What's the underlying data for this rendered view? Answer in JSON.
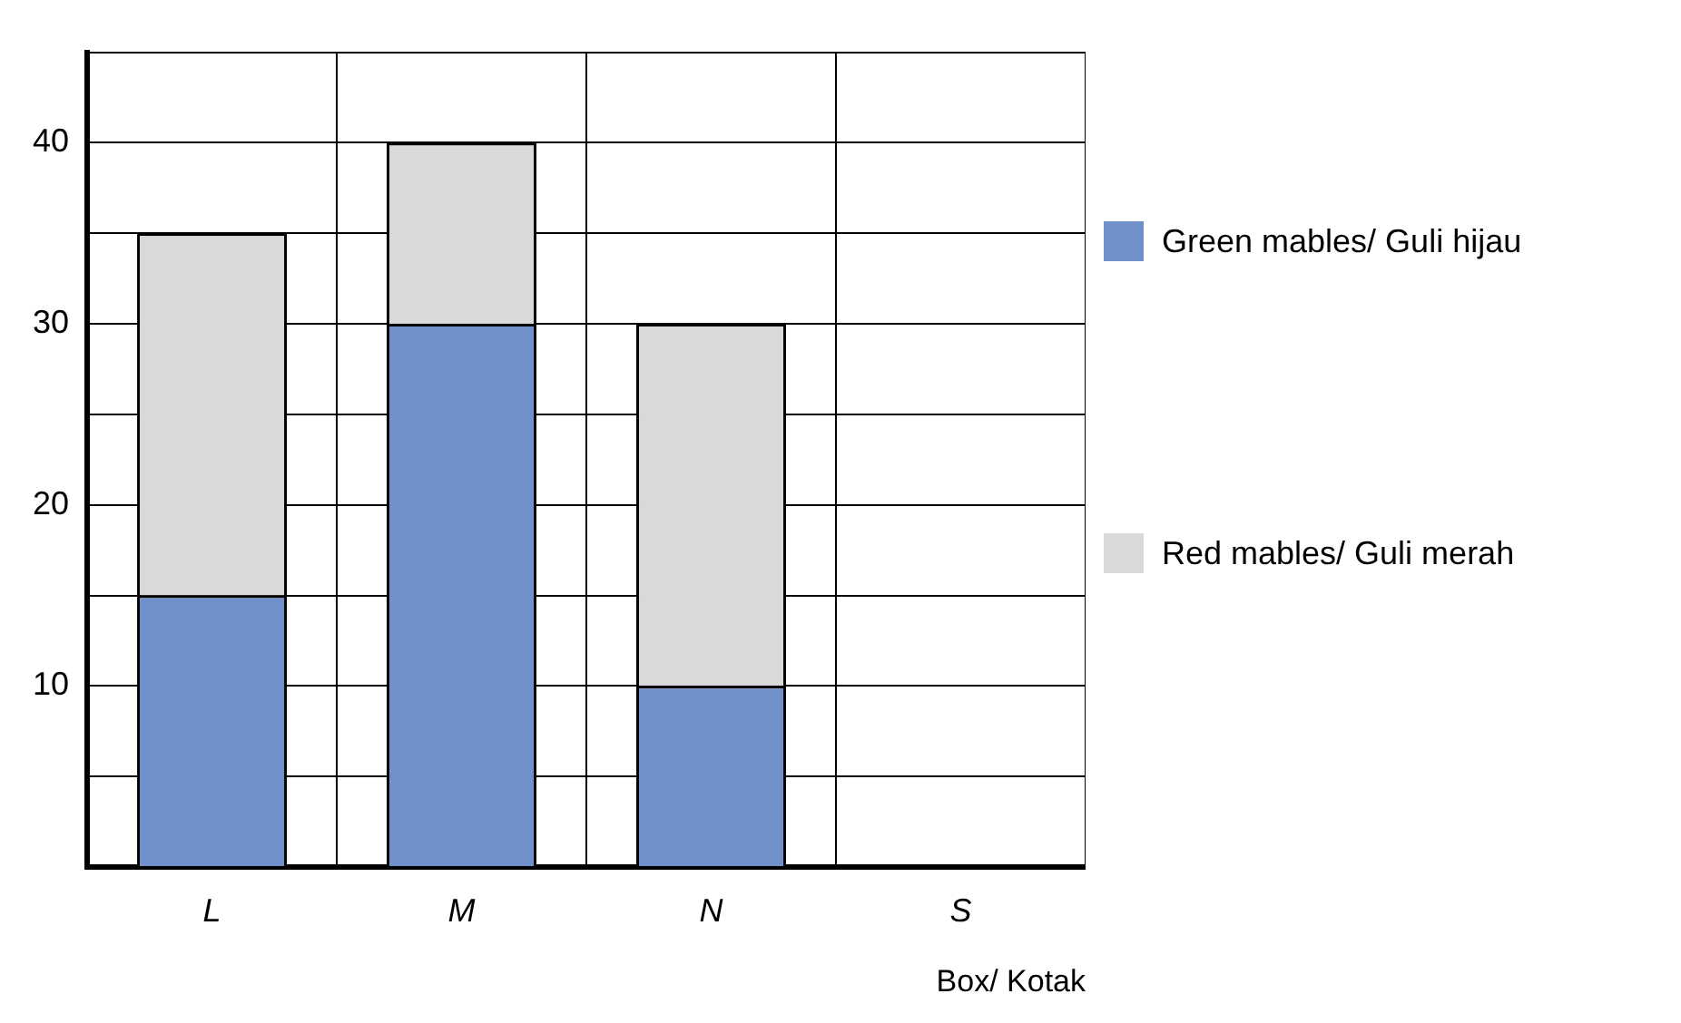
{
  "chart_data": {
    "type": "bar",
    "stacked": true,
    "xlabel": "Box/ Kotak",
    "categories": [
      "L",
      "M",
      "N",
      "S"
    ],
    "series": [
      {
        "name": "Green mables/ Guli hijau",
        "color": "#7090cc",
        "values": [
          15,
          30,
          10,
          null
        ]
      },
      {
        "name": "Red mables/ Guli merah",
        "color": "#d9d9d9",
        "values": [
          20,
          10,
          20,
          null
        ]
      }
    ],
    "ylim": [
      0,
      45
    ],
    "yticks": [
      {
        "value": 0,
        "label": null
      },
      {
        "value": 5,
        "label": null
      },
      10,
      {
        "value": 15,
        "label": null
      },
      20,
      {
        "value": 25,
        "label": null
      },
      30,
      {
        "value": 35,
        "label": null
      },
      40,
      {
        "value": 45,
        "label": null
      }
    ],
    "grid": true,
    "legend": "right"
  }
}
